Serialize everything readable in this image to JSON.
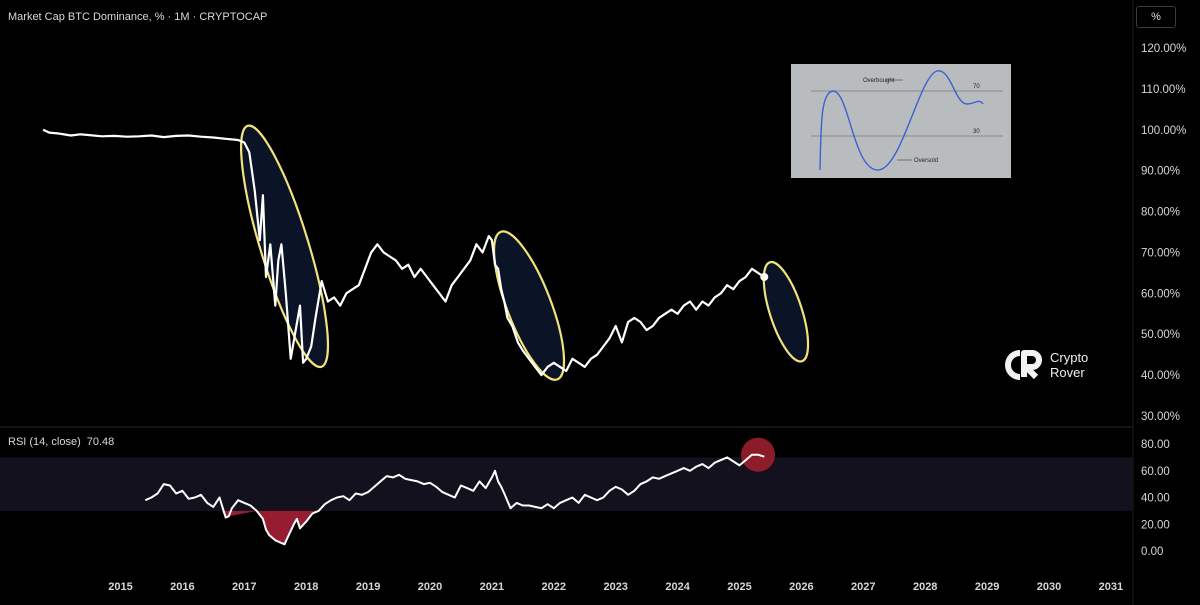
{
  "header": {
    "title": "Market Cap BTC Dominance, % · 1M · CRYPTOCAP",
    "unit_button": "%"
  },
  "rsi_pane": {
    "label": "RSI (14, close)",
    "value": "70.48"
  },
  "logo": {
    "line1": "Crypto",
    "line2": "Rover"
  },
  "inset": {
    "overbought": "Overbought",
    "oversold": "Oversold",
    "level_high": "70",
    "level_low": "30"
  },
  "colors": {
    "line": "#ffffff",
    "highlight_ellipse": "#f1e27a",
    "ellipse_fill": "#0b1326",
    "rsi_band": "#14111f",
    "rsi_oversold_fill": "#b0223a",
    "rsi_marker": "#a3202e"
  },
  "chart_data": [
    {
      "type": "line",
      "title": "Market Cap BTC Dominance, % · 1M · CRYPTOCAP",
      "ylim": [
        30,
        120
      ],
      "y_ticks": [
        "30.00%",
        "40.00%",
        "50.00%",
        "60.00%",
        "70.00%",
        "80.00%",
        "90.00%",
        "100.00%",
        "110.00%",
        "120.00%"
      ],
      "x_ticks": [
        "2015",
        "2016",
        "2017",
        "2018",
        "2019",
        "2020",
        "2021",
        "2022",
        "2023",
        "2024",
        "2025",
        "2026",
        "2027",
        "2028",
        "2029",
        "2030",
        "2031"
      ],
      "xlim": [
        2013.6,
        2031.3
      ],
      "series": [
        {
          "x": [
            2013.75,
            2013.85,
            2014.0,
            2014.2,
            2014.35,
            2014.5,
            2014.7,
            2014.9,
            2015.1,
            2015.3,
            2015.5,
            2015.7,
            2015.9,
            2016.1,
            2016.3,
            2016.5,
            2016.7,
            2016.9,
            2017.0,
            2017.08,
            2017.17,
            2017.25,
            2017.3,
            2017.35,
            2017.42,
            2017.5,
            2017.55,
            2017.6,
            2017.67,
            2017.75,
            2017.83,
            2017.9,
            2017.95,
            2018.0,
            2018.08,
            2018.15,
            2018.25,
            2018.35,
            2018.45,
            2018.55,
            2018.65,
            2018.75,
            2018.85,
            2018.95,
            2019.05,
            2019.15,
            2019.25,
            2019.35,
            2019.45,
            2019.55,
            2019.65,
            2019.75,
            2019.85,
            2019.95,
            2020.05,
            2020.15,
            2020.25,
            2020.35,
            2020.45,
            2020.55,
            2020.65,
            2020.75,
            2020.85,
            2020.95,
            2021.0,
            2021.05,
            2021.1,
            2021.15,
            2021.2,
            2021.25,
            2021.33,
            2021.42,
            2021.5,
            2021.6,
            2021.7,
            2021.8,
            2021.9,
            2022.0,
            2022.1,
            2022.2,
            2022.3,
            2022.4,
            2022.5,
            2022.6,
            2022.7,
            2022.8,
            2022.9,
            2023.0,
            2023.1,
            2023.2,
            2023.3,
            2023.4,
            2023.5,
            2023.6,
            2023.7,
            2023.8,
            2023.9,
            2024.0,
            2024.1,
            2024.2,
            2024.3,
            2024.4,
            2024.5,
            2024.6,
            2024.7,
            2024.8,
            2024.9,
            2025.0,
            2025.1,
            2025.2,
            2025.3,
            2025.4
          ],
          "y": [
            100,
            99.3,
            99.1,
            98.6,
            98.9,
            98.7,
            98.4,
            98.5,
            98.3,
            98.4,
            98.6,
            98.2,
            98.5,
            98.6,
            98.3,
            98.1,
            97.8,
            97.5,
            96.9,
            94.5,
            85,
            73,
            84,
            64,
            72,
            57,
            68,
            72,
            60,
            44,
            51,
            57,
            43,
            44,
            47,
            54,
            63,
            58,
            59,
            57,
            60,
            61,
            62,
            66,
            70,
            72,
            70,
            69,
            68,
            66,
            67,
            64,
            66,
            64,
            62,
            60,
            58,
            62,
            64,
            66,
            68,
            72,
            70,
            74,
            73,
            67,
            66,
            61,
            58,
            54,
            52,
            48,
            46,
            44,
            42,
            40,
            42,
            43,
            42,
            41,
            44,
            43,
            42,
            44,
            45,
            47,
            49,
            52,
            48,
            53,
            54,
            53,
            51,
            52,
            54,
            55,
            56,
            55,
            57,
            58,
            56,
            58,
            57,
            59,
            60,
            62,
            61,
            63,
            64,
            66,
            65,
            64
          ]
        }
      ],
      "annotations": [
        "highlight-ellipse-2017",
        "highlight-ellipse-2021",
        "highlight-ellipse-2025",
        "endpoint-dot"
      ]
    },
    {
      "type": "line",
      "title": "RSI (14, close)",
      "ylim": [
        0,
        80
      ],
      "y_ticks": [
        "0.00",
        "20.00",
        "40.00",
        "60.00",
        "80.00"
      ],
      "bands": [
        30,
        70
      ],
      "series": [
        {
          "x": [
            2015.4,
            2015.5,
            2015.6,
            2015.7,
            2015.8,
            2015.9,
            2016.0,
            2016.1,
            2016.2,
            2016.3,
            2016.4,
            2016.5,
            2016.6,
            2016.7,
            2016.75,
            2016.8,
            2016.9,
            2017.0,
            2017.1,
            2017.2,
            2017.3,
            2017.35,
            2017.4,
            2017.5,
            2017.6,
            2017.65,
            2017.7,
            2017.8,
            2017.85,
            2017.9,
            2018.0,
            2018.1,
            2018.2,
            2018.3,
            2018.4,
            2018.5,
            2018.6,
            2018.7,
            2018.8,
            2018.9,
            2019.0,
            2019.1,
            2019.2,
            2019.3,
            2019.4,
            2019.5,
            2019.6,
            2019.7,
            2019.8,
            2019.9,
            2020.0,
            2020.1,
            2020.2,
            2020.3,
            2020.4,
            2020.5,
            2020.6,
            2020.7,
            2020.8,
            2020.9,
            2021.0,
            2021.05,
            2021.1,
            2021.15,
            2021.2,
            2021.3,
            2021.4,
            2021.5,
            2021.6,
            2021.7,
            2021.8,
            2021.9,
            2022.0,
            2022.1,
            2022.2,
            2022.3,
            2022.4,
            2022.5,
            2022.6,
            2022.7,
            2022.8,
            2022.9,
            2023.0,
            2023.1,
            2023.2,
            2023.3,
            2023.4,
            2023.5,
            2023.6,
            2023.7,
            2023.8,
            2023.9,
            2024.0,
            2024.1,
            2024.2,
            2024.3,
            2024.4,
            2024.5,
            2024.6,
            2024.7,
            2024.8,
            2024.9,
            2025.0,
            2025.1,
            2025.2,
            2025.3,
            2025.4
          ],
          "y": [
            38,
            40,
            43,
            50,
            49,
            43,
            45,
            39,
            40,
            42,
            36,
            33,
            40,
            25,
            26,
            32,
            38,
            36,
            34,
            30,
            24,
            16,
            12,
            8,
            6,
            5,
            10,
            20,
            24,
            17,
            22,
            28,
            30,
            35,
            38,
            40,
            41,
            38,
            43,
            42,
            44,
            48,
            52,
            56,
            55,
            57,
            54,
            53,
            52,
            50,
            51,
            48,
            44,
            42,
            40,
            49,
            47,
            45,
            52,
            47,
            55,
            60,
            52,
            48,
            43,
            32,
            36,
            34,
            34,
            33,
            32,
            35,
            32,
            36,
            38,
            40,
            36,
            42,
            40,
            38,
            40,
            45,
            48,
            46,
            42,
            45,
            50,
            52,
            55,
            54,
            56,
            58,
            60,
            62,
            60,
            63,
            65,
            62,
            66,
            68,
            70,
            67,
            64,
            68,
            72,
            72,
            70.48
          ]
        }
      ]
    }
  ]
}
